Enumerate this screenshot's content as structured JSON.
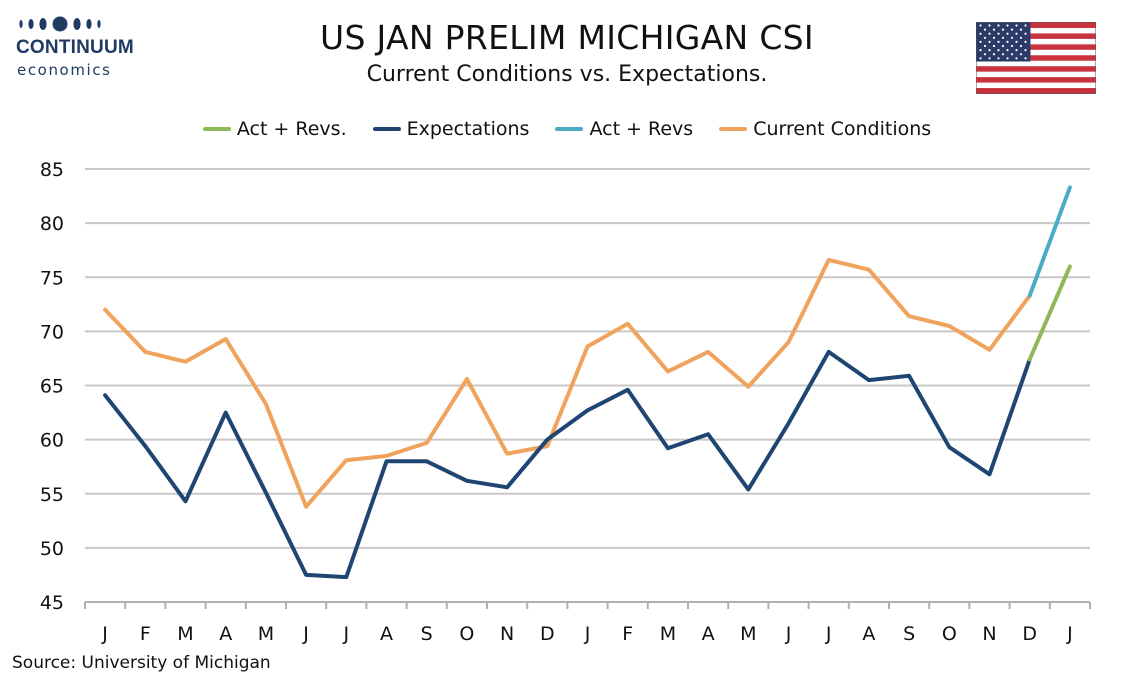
{
  "header": {
    "logo_brand": "CONTINUUM",
    "logo_sub": "economics",
    "logo_color": "#1f3b63",
    "flag_icon": "us-flag-icon"
  },
  "chart_data": {
    "type": "line",
    "title": "US JAN PRELIM MICHIGAN CSI",
    "subtitle": "Current Conditions vs. Expectations.",
    "categories": [
      "J",
      "F",
      "M",
      "A",
      "M",
      "J",
      "J",
      "A",
      "S",
      "O",
      "N",
      "D",
      "J",
      "F",
      "M",
      "A",
      "M",
      "J",
      "J",
      "A",
      "S",
      "O",
      "N",
      "D",
      "J"
    ],
    "ylim": [
      45,
      85
    ],
    "yticks": [
      "45",
      "50",
      "55",
      "60",
      "65",
      "70",
      "75",
      "80",
      "85"
    ],
    "grid": true,
    "legend_position": "top",
    "series": [
      {
        "name": "Act + Revs.",
        "color": "#8db956",
        "values": [
          null,
          null,
          null,
          null,
          null,
          null,
          null,
          null,
          null,
          null,
          null,
          null,
          null,
          null,
          null,
          null,
          null,
          null,
          null,
          null,
          null,
          null,
          null,
          67.4,
          76.0
        ]
      },
      {
        "name": "Expectations",
        "color": "#1f4573",
        "values": [
          64.1,
          59.4,
          54.3,
          62.5,
          55.1,
          47.5,
          47.3,
          58.0,
          58.0,
          56.2,
          55.6,
          60.0,
          62.7,
          64.6,
          59.2,
          60.5,
          55.4,
          61.5,
          68.1,
          65.5,
          65.9,
          59.3,
          56.8,
          67.4,
          null
        ]
      },
      {
        "name": "Act + Revs",
        "color": "#4bacc6",
        "values": [
          null,
          null,
          null,
          null,
          null,
          null,
          null,
          null,
          null,
          null,
          null,
          null,
          null,
          null,
          null,
          null,
          null,
          null,
          null,
          null,
          null,
          null,
          null,
          73.3,
          83.3
        ]
      },
      {
        "name": "Current Conditions",
        "color": "#f0a35c",
        "values": [
          72.0,
          68.1,
          67.2,
          69.3,
          63.3,
          53.8,
          58.1,
          58.5,
          59.7,
          65.6,
          58.7,
          59.4,
          68.6,
          70.7,
          66.3,
          68.1,
          64.9,
          69.0,
          76.6,
          75.7,
          71.4,
          70.5,
          68.3,
          73.3,
          null
        ]
      }
    ]
  },
  "footer": {
    "source": "Source: University of Michigan"
  }
}
